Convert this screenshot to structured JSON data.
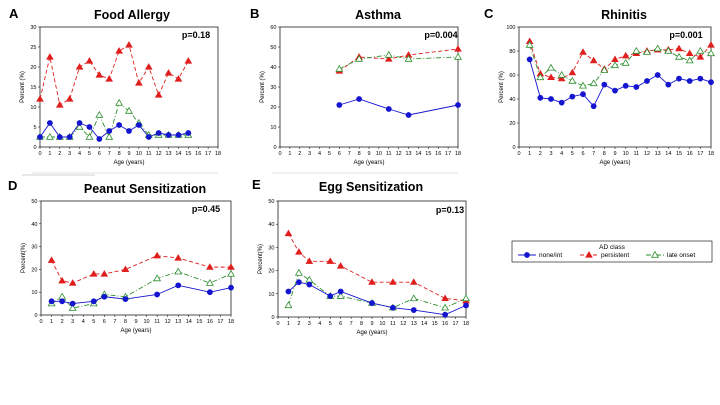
{
  "colors": {
    "none_int": "#1515d0",
    "persistent": "#e01e1e",
    "late_onset": "#2f8f2f"
  },
  "legend": {
    "title": "AD class",
    "entries": [
      {
        "key": "none_int",
        "label": "none/int"
      },
      {
        "key": "persistent",
        "label": "persistent"
      },
      {
        "key": "late_onset",
        "label": "late onset"
      }
    ]
  },
  "chart_data": [
    {
      "letter": "A",
      "title": "Food Allergy",
      "pvalue": "p=0.18",
      "type": "line",
      "xlabel": "Age (years)",
      "ylabel": "Percent (%)",
      "xlim": [
        0,
        18
      ],
      "xticks": [
        0,
        1,
        2,
        3,
        4,
        5,
        6,
        7,
        8,
        9,
        10,
        11,
        12,
        13,
        14,
        15,
        16,
        17,
        18
      ],
      "ylim": [
        0,
        30
      ],
      "yticks": [
        0,
        5,
        10,
        15,
        20,
        25,
        30
      ],
      "series": [
        {
          "key": "persistent",
          "x": [
            0,
            1,
            2,
            3,
            4,
            5,
            6,
            7,
            8,
            9,
            10,
            11,
            12,
            13,
            14,
            15
          ],
          "y": [
            12,
            22.5,
            10.5,
            12,
            20,
            21.5,
            18,
            17,
            24,
            25.5,
            16,
            20,
            13,
            18.5,
            17,
            21.5
          ]
        },
        {
          "key": "late_onset",
          "x": [
            0,
            1,
            2,
            3,
            4,
            5,
            6,
            7,
            8,
            9,
            10,
            11,
            12,
            13,
            14,
            15
          ],
          "y": [
            2.5,
            2.5,
            2.5,
            2.5,
            5,
            2.5,
            8,
            2.5,
            11,
            9,
            6,
            3,
            3,
            3,
            3,
            3
          ]
        },
        {
          "key": "none_int",
          "x": [
            0,
            1,
            2,
            3,
            4,
            5,
            6,
            7,
            8,
            9,
            10,
            11,
            12,
            13,
            14,
            15
          ],
          "y": [
            2.5,
            6,
            2.5,
            2.5,
            6,
            5,
            2,
            4,
            5.5,
            4,
            5.5,
            2.5,
            3.5,
            3,
            3,
            3.5
          ]
        }
      ]
    },
    {
      "letter": "B",
      "title": "Asthma",
      "pvalue": "p=0.004",
      "type": "line",
      "xlabel": "Age (years)",
      "ylabel": "Percent (%)",
      "xlim": [
        0,
        18
      ],
      "xticks": [
        0,
        1,
        2,
        3,
        4,
        5,
        6,
        7,
        8,
        9,
        10,
        11,
        12,
        13,
        14,
        15,
        16,
        17,
        18
      ],
      "ylim": [
        0,
        60
      ],
      "yticks": [
        0,
        10,
        20,
        30,
        40,
        50,
        60
      ],
      "series": [
        {
          "key": "persistent",
          "x": [
            6,
            8,
            11,
            13,
            18
          ],
          "y": [
            38,
            45,
            44,
            46,
            49
          ]
        },
        {
          "key": "late_onset",
          "x": [
            6,
            8,
            11,
            13,
            18
          ],
          "y": [
            39,
            44,
            46,
            44,
            45
          ]
        },
        {
          "key": "none_int",
          "x": [
            6,
            8,
            11,
            13,
            18
          ],
          "y": [
            21,
            24,
            19,
            16,
            21
          ]
        }
      ]
    },
    {
      "letter": "C",
      "title": "Rhinitis",
      "pvalue": "p=0.001",
      "type": "line",
      "xlabel": "Age (years)",
      "ylabel": "Percent (%)",
      "xlim": [
        0,
        18
      ],
      "xticks": [
        0,
        1,
        2,
        3,
        4,
        5,
        6,
        7,
        8,
        9,
        10,
        11,
        12,
        13,
        14,
        15,
        16,
        17,
        18
      ],
      "ylim": [
        0,
        100
      ],
      "yticks": [
        0,
        20,
        40,
        60,
        80,
        100
      ],
      "series": [
        {
          "key": "persistent",
          "x": [
            1,
            2,
            3,
            4,
            5,
            6,
            7,
            8,
            9,
            10,
            11,
            12,
            13,
            14,
            15,
            16,
            17,
            18
          ],
          "y": [
            88,
            61,
            58,
            57,
            62,
            79,
            72,
            65,
            73,
            76,
            78,
            80,
            81,
            81,
            82,
            78,
            75,
            85
          ]
        },
        {
          "key": "late_onset",
          "x": [
            1,
            2,
            3,
            4,
            5,
            6,
            7,
            8,
            9,
            10,
            11,
            12,
            13,
            14,
            15,
            16,
            17,
            18
          ],
          "y": [
            85,
            58,
            66,
            60,
            55,
            51,
            53,
            64,
            68,
            70,
            80,
            79,
            82,
            80,
            75,
            72,
            80,
            78
          ]
        },
        {
          "key": "none_int",
          "x": [
            1,
            2,
            3,
            4,
            5,
            6,
            7,
            8,
            9,
            10,
            11,
            12,
            13,
            14,
            15,
            16,
            17,
            18
          ],
          "y": [
            73,
            41,
            40,
            37,
            42,
            44,
            34,
            52,
            47,
            51,
            50,
            55,
            60,
            52,
            57,
            55,
            57,
            54
          ]
        }
      ]
    },
    {
      "letter": "D",
      "title": "Peanut Sensitization",
      "pvalue": "p=0.45",
      "type": "line",
      "xlabel": "Age (years)",
      "ylabel": "Percent(%)",
      "xlim": [
        0,
        18
      ],
      "xticks": [
        0,
        1,
        2,
        3,
        4,
        5,
        6,
        7,
        8,
        9,
        10,
        11,
        12,
        13,
        14,
        15,
        16,
        17,
        18
      ],
      "ylim": [
        0,
        50
      ],
      "yticks": [
        0,
        10,
        20,
        30,
        40,
        50
      ],
      "series": [
        {
          "key": "persistent",
          "x": [
            1,
            2,
            3,
            5,
            6,
            8,
            11,
            13,
            16,
            18
          ],
          "y": [
            24,
            15,
            14,
            18,
            18,
            20,
            26,
            25,
            21,
            21
          ]
        },
        {
          "key": "late_onset",
          "x": [
            1,
            2,
            3,
            5,
            6,
            8,
            11,
            13,
            16,
            18
          ],
          "y": [
            5,
            8,
            3,
            5,
            9,
            8,
            16,
            19,
            14,
            18
          ]
        },
        {
          "key": "none_int",
          "x": [
            1,
            2,
            3,
            5,
            6,
            8,
            11,
            13,
            16,
            18
          ],
          "y": [
            6,
            6,
            5,
            6,
            8,
            7,
            9,
            13,
            10,
            12
          ]
        }
      ]
    },
    {
      "letter": "E",
      "title": "Egg Sensitization",
      "pvalue": "p=0.13",
      "type": "line",
      "xlabel": "Age (years)",
      "ylabel": "Percent(%)",
      "xlim": [
        0,
        18
      ],
      "xticks": [
        0,
        1,
        2,
        3,
        4,
        5,
        6,
        7,
        8,
        9,
        10,
        11,
        12,
        13,
        14,
        15,
        16,
        17,
        18
      ],
      "ylim": [
        0,
        50
      ],
      "yticks": [
        0,
        10,
        20,
        30,
        40,
        50
      ],
      "series": [
        {
          "key": "persistent",
          "x": [
            1,
            2,
            3,
            5,
            6,
            9,
            11,
            13,
            16,
            18
          ],
          "y": [
            36,
            28,
            24,
            24,
            22,
            15,
            15,
            15,
            8,
            7
          ]
        },
        {
          "key": "late_onset",
          "x": [
            1,
            2,
            3,
            5,
            6,
            9,
            11,
            13,
            16,
            18
          ],
          "y": [
            5,
            19,
            16,
            9,
            9,
            6,
            4,
            8,
            4,
            8
          ]
        },
        {
          "key": "none_int",
          "x": [
            1,
            2,
            3,
            5,
            6,
            9,
            11,
            13,
            16,
            18
          ],
          "y": [
            11,
            15,
            14,
            9,
            11,
            6,
            4,
            3,
            1,
            5
          ]
        }
      ]
    }
  ]
}
